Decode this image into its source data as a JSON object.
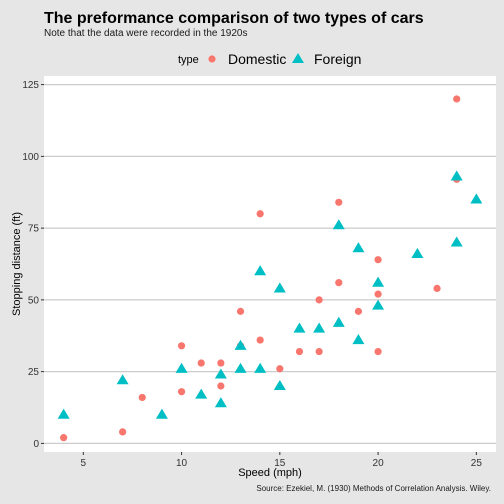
{
  "chart_data": {
    "type": "scatter",
    "title": "The preformance comparison of two types of cars",
    "subtitle": "Note that the data were recorded in the 1920s",
    "caption": "Source: Ezekiel, M. (1930) Methods of Correlation Analysis. Wiley.",
    "xlabel": "Speed (mph)",
    "ylabel": "Stopping distance (ft)",
    "xlim": [
      3,
      26
    ],
    "ylim": [
      -3,
      128
    ],
    "xticks": [
      5,
      10,
      15,
      20,
      25
    ],
    "yticks": [
      0,
      25,
      50,
      75,
      100,
      125
    ],
    "legend": {
      "title": "type",
      "position": "top"
    },
    "grid": "horizontal major only",
    "series": [
      {
        "name": "Domestic",
        "marker": "circle",
        "color": "#f8766d",
        "points": [
          [
            4,
            2
          ],
          [
            7,
            4
          ],
          [
            8,
            16
          ],
          [
            10,
            18
          ],
          [
            10,
            34
          ],
          [
            11,
            28
          ],
          [
            12,
            20
          ],
          [
            12,
            28
          ],
          [
            13,
            34
          ],
          [
            13,
            46
          ],
          [
            14,
            36
          ],
          [
            14,
            80
          ],
          [
            15,
            26
          ],
          [
            16,
            32
          ],
          [
            17,
            32
          ],
          [
            17,
            50
          ],
          [
            18,
            56
          ],
          [
            18,
            84
          ],
          [
            19,
            46
          ],
          [
            20,
            32
          ],
          [
            20,
            52
          ],
          [
            20,
            64
          ],
          [
            23,
            54
          ],
          [
            24,
            92
          ],
          [
            24,
            120
          ]
        ]
      },
      {
        "name": "Foreign",
        "marker": "triangle",
        "color": "#00bfc4",
        "points": [
          [
            4,
            10
          ],
          [
            7,
            22
          ],
          [
            9,
            10
          ],
          [
            10,
            26
          ],
          [
            11,
            17
          ],
          [
            12,
            14
          ],
          [
            12,
            24
          ],
          [
            13,
            26
          ],
          [
            13,
            34
          ],
          [
            14,
            26
          ],
          [
            14,
            60
          ],
          [
            15,
            20
          ],
          [
            15,
            54
          ],
          [
            16,
            40
          ],
          [
            17,
            40
          ],
          [
            18,
            42
          ],
          [
            18,
            76
          ],
          [
            19,
            36
          ],
          [
            19,
            68
          ],
          [
            20,
            48
          ],
          [
            20,
            56
          ],
          [
            22,
            66
          ],
          [
            24,
            70
          ],
          [
            24,
            93
          ],
          [
            25,
            85
          ]
        ]
      }
    ]
  }
}
